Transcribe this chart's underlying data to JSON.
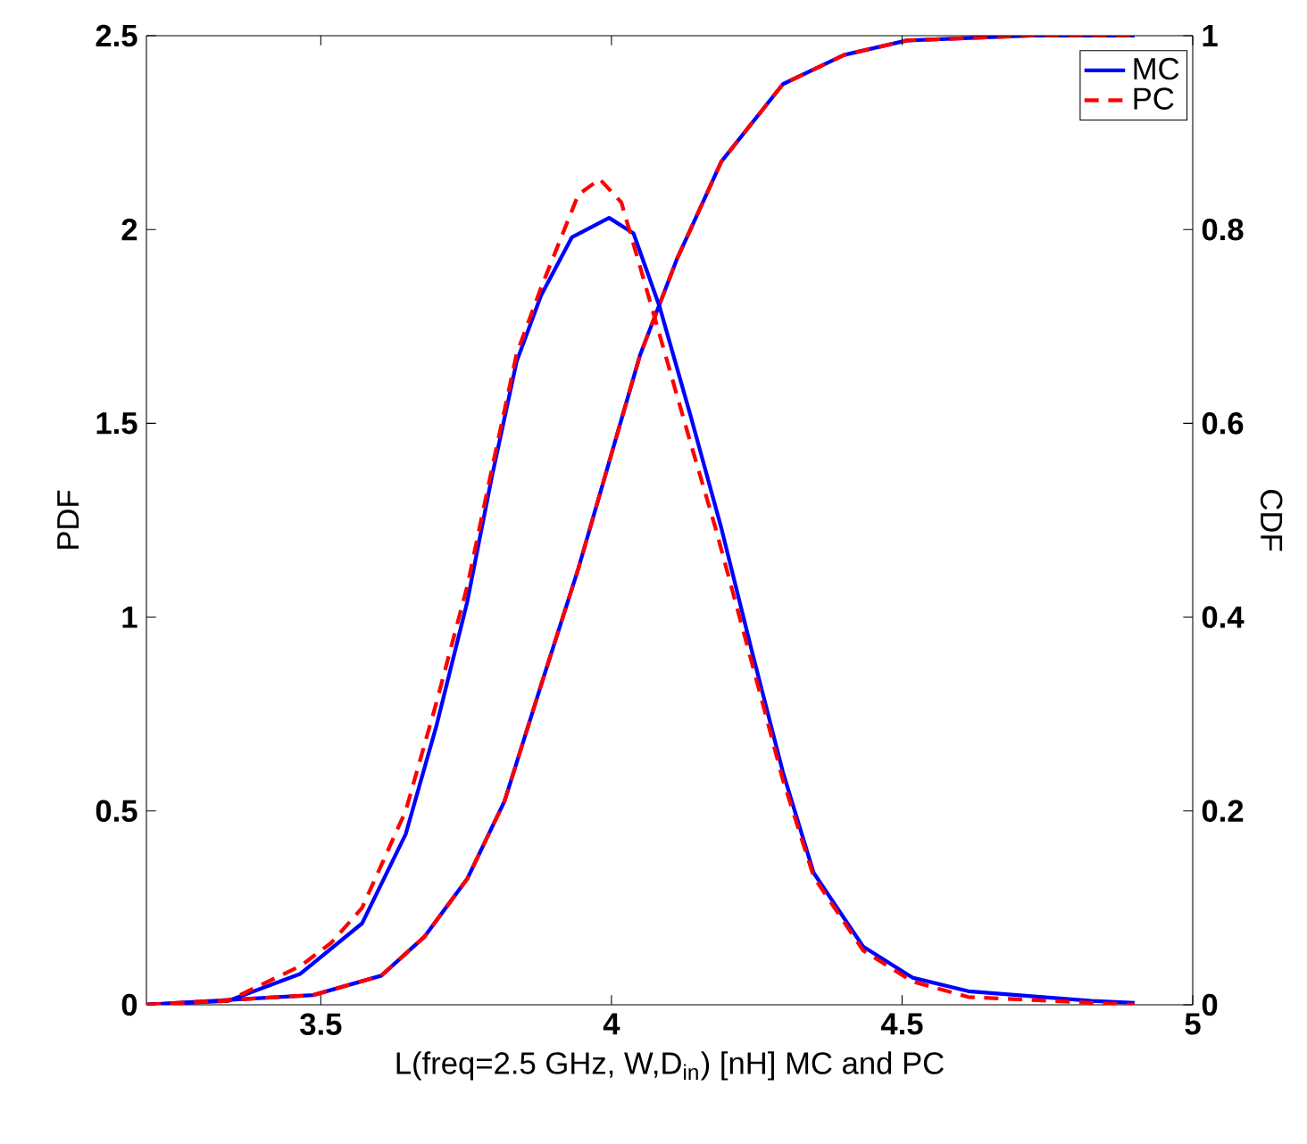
{
  "chart_data": {
    "type": "line",
    "xlabel": "L(freq=2.5 GHz, W,D$_{in}$) [nH] MC and PC",
    "ylabel": "PDF",
    "y2label": "CDF",
    "xlim": [
      3.2,
      5
    ],
    "xticks": [
      3.5,
      4,
      4.5,
      5
    ],
    "ylim": [
      0,
      2.5
    ],
    "yticks": [
      0,
      0.5,
      1,
      1.5,
      2,
      2.5
    ],
    "y2lim": [
      0,
      1
    ],
    "y2ticks": [
      0,
      0.2,
      0.4,
      0.6,
      0.8,
      1
    ],
    "legend": "top right",
    "grid": false,
    "marker": "none",
    "series": [
      {
        "name": "MC",
        "color": "#0000ff",
        "line_style": "solid",
        "x": [
          3.2,
          3.34,
          3.465,
          3.571,
          3.646,
          3.699,
          3.752,
          3.794,
          3.837,
          3.879,
          3.932,
          3.996,
          4.038,
          4.083,
          4.136,
          4.189,
          4.242,
          4.295,
          4.348,
          4.433,
          4.518,
          4.614,
          4.826,
          4.9
        ],
        "values": [
          0,
          0.01,
          0.08,
          0.21,
          0.44,
          0.72,
          1.04,
          1.36,
          1.66,
          1.83,
          1.98,
          2.03,
          1.99,
          1.8,
          1.52,
          1.23,
          0.91,
          0.6,
          0.34,
          0.15,
          0.07,
          0.035,
          0.01,
          0.005
        ]
      },
      {
        "name": "PC",
        "color": "#ff0000",
        "line_style": "dashed",
        "x": [
          3.2,
          3.34,
          3.465,
          3.518,
          3.571,
          3.646,
          3.699,
          3.752,
          3.794,
          3.837,
          3.879,
          3.943,
          3.98,
          4.017,
          4.05,
          4.094,
          4.136,
          4.179,
          4.242,
          4.295,
          4.348,
          4.433,
          4.518,
          4.614,
          4.826,
          4.9
        ],
        "values": [
          0,
          0.01,
          0.1,
          0.16,
          0.25,
          0.5,
          0.78,
          1.08,
          1.38,
          1.68,
          1.85,
          2.09,
          2.13,
          2.07,
          1.9,
          1.67,
          1.45,
          1.23,
          0.88,
          0.58,
          0.33,
          0.14,
          0.06,
          0.02,
          0.005,
          0
        ]
      },
      {
        "color": "#0000ff",
        "line_style": "solid",
        "axis": "y2",
        "x": [
          3.2,
          3.487,
          3.604,
          3.678,
          3.752,
          3.816,
          3.879,
          3.943,
          3.996,
          4.049,
          4.113,
          4.136,
          4.189,
          4.295,
          4.4,
          4.508,
          4.72,
          4.9
        ],
        "values": [
          0,
          0.01,
          0.03,
          0.07,
          0.13,
          0.21,
          0.33,
          0.45,
          0.56,
          0.67,
          0.77,
          0.8,
          0.87,
          0.95,
          0.98,
          0.995,
          1,
          1
        ]
      },
      {
        "color": "#ff0000",
        "line_style": "dashed",
        "axis": "y2",
        "x": [
          3.2,
          3.487,
          3.604,
          3.678,
          3.752,
          3.816,
          3.879,
          3.943,
          3.996,
          4.049,
          4.113,
          4.136,
          4.189,
          4.295,
          4.4,
          4.508,
          4.72,
          4.9
        ],
        "values": [
          0,
          0.01,
          0.03,
          0.07,
          0.13,
          0.21,
          0.33,
          0.45,
          0.56,
          0.67,
          0.77,
          0.8,
          0.87,
          0.95,
          0.98,
          0.995,
          1,
          1
        ]
      }
    ]
  }
}
